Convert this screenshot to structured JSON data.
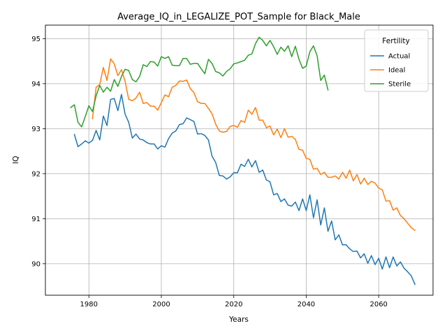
{
  "chart_data": {
    "type": "line",
    "title": "Average_IQ_in_LEGALIZE_POT_Sample for Black_Male",
    "xlabel": "Years",
    "ylabel": "IQ",
    "xlim": [
      1968,
      2075
    ],
    "ylim": [
      89.3,
      95.3
    ],
    "xticks": [
      1980,
      2000,
      2020,
      2040,
      2060
    ],
    "yticks": [
      90,
      91,
      92,
      93,
      94,
      95
    ],
    "grid": true,
    "legend": {
      "title": "Fertility",
      "position": "top-right"
    },
    "series": [
      {
        "name": "Actual",
        "color": "#1f77b4",
        "x": [
          1976,
          1977,
          1978,
          1979,
          1980,
          1981,
          1982,
          1983,
          1984,
          1985,
          1986,
          1987,
          1988,
          1989,
          1990,
          1991,
          1992,
          1993,
          1994,
          1995,
          1996,
          1997,
          1998,
          1999,
          2000,
          2001,
          2002,
          2003,
          2004,
          2005,
          2006,
          2007,
          2008,
          2009,
          2010,
          2011,
          2012,
          2013,
          2014,
          2015,
          2016,
          2017,
          2018,
          2019,
          2020,
          2021,
          2022,
          2023,
          2024,
          2025,
          2026,
          2027,
          2028,
          2029,
          2030,
          2031,
          2032,
          2033,
          2034,
          2035,
          2036,
          2037,
          2038,
          2039,
          2040,
          2041,
          2042,
          2043,
          2044,
          2045,
          2046,
          2047,
          2048,
          2049,
          2050,
          2051,
          2052,
          2053,
          2054,
          2055,
          2056,
          2057,
          2058,
          2059,
          2060,
          2061,
          2062,
          2063,
          2064,
          2065,
          2066,
          2067,
          2068,
          2069,
          2070
        ],
        "values": [
          92.87,
          92.6,
          92.66,
          92.73,
          92.68,
          92.74,
          92.96,
          92.75,
          93.28,
          93.07,
          93.65,
          93.67,
          93.4,
          93.76,
          93.32,
          93.14,
          92.79,
          92.88,
          92.77,
          92.75,
          92.69,
          92.66,
          92.66,
          92.55,
          92.62,
          92.59,
          92.78,
          92.9,
          92.95,
          93.09,
          93.11,
          93.24,
          93.2,
          93.16,
          92.88,
          92.89,
          92.85,
          92.75,
          92.39,
          92.25,
          91.96,
          91.95,
          91.88,
          91.93,
          92.02,
          92.02,
          92.21,
          92.16,
          92.32,
          92.15,
          92.29,
          92.03,
          92.08,
          91.86,
          91.82,
          91.53,
          91.56,
          91.38,
          91.44,
          91.3,
          91.28,
          91.37,
          91.18,
          91.44,
          91.18,
          91.53,
          91.02,
          91.42,
          90.86,
          91.24,
          90.72,
          90.95,
          90.53,
          90.64,
          90.42,
          90.42,
          90.33,
          90.27,
          90.28,
          90.13,
          90.22,
          90.01,
          90.18,
          89.98,
          90.12,
          89.88,
          90.15,
          89.91,
          90.15,
          89.95,
          90.04,
          89.9,
          89.82,
          89.73,
          89.54
        ]
      },
      {
        "name": "Ideal",
        "color": "#ff7f0e",
        "x": [
          1981,
          1982,
          1983,
          1984,
          1985,
          1986,
          1987,
          1988,
          1989,
          1990,
          1991,
          1992,
          1993,
          1994,
          1995,
          1996,
          1997,
          1998,
          1999,
          2000,
          2001,
          2002,
          2003,
          2004,
          2005,
          2006,
          2007,
          2008,
          2009,
          2010,
          2011,
          2012,
          2013,
          2014,
          2015,
          2016,
          2017,
          2018,
          2019,
          2020,
          2021,
          2022,
          2023,
          2024,
          2025,
          2026,
          2027,
          2028,
          2029,
          2030,
          2031,
          2032,
          2033,
          2034,
          2035,
          2036,
          2037,
          2038,
          2039,
          2040,
          2041,
          2042,
          2043,
          2044,
          2045,
          2046,
          2047,
          2048,
          2049,
          2050,
          2051,
          2052,
          2053,
          2054,
          2055,
          2056,
          2057,
          2058,
          2059,
          2060,
          2061,
          2062,
          2063,
          2064,
          2065,
          2066,
          2067,
          2068,
          2069,
          2070
        ],
        "values": [
          93.22,
          93.92,
          93.98,
          94.36,
          94.07,
          94.55,
          94.44,
          94.18,
          94.31,
          94.05,
          93.65,
          93.62,
          93.68,
          93.81,
          93.56,
          93.58,
          93.5,
          93.5,
          93.41,
          93.58,
          93.75,
          93.71,
          93.92,
          93.96,
          94.06,
          94.05,
          94.08,
          93.89,
          93.8,
          93.6,
          93.56,
          93.56,
          93.45,
          93.33,
          93.1,
          92.95,
          92.92,
          92.94,
          93.05,
          93.07,
          93.03,
          93.18,
          93.14,
          93.41,
          93.32,
          93.47,
          93.19,
          93.19,
          93.02,
          93.06,
          92.86,
          92.99,
          92.8,
          93.0,
          92.81,
          92.83,
          92.76,
          92.54,
          92.52,
          92.34,
          92.32,
          92.1,
          92.12,
          91.98,
          92.03,
          91.92,
          91.92,
          91.95,
          91.88,
          92.03,
          91.9,
          92.08,
          91.84,
          91.98,
          91.77,
          91.9,
          91.76,
          91.83,
          91.79,
          91.68,
          91.64,
          91.39,
          91.4,
          91.19,
          91.24,
          91.07,
          91.0,
          90.9,
          90.8,
          90.74
        ]
      },
      {
        "name": "Sterile",
        "color": "#2ca02c",
        "x": [
          1975,
          1976,
          1977,
          1978,
          1979,
          1980,
          1981,
          1982,
          1983,
          1984,
          1985,
          1986,
          1987,
          1988,
          1989,
          1990,
          1991,
          1992,
          1993,
          1994,
          1995,
          1996,
          1997,
          1998,
          1999,
          2000,
          2001,
          2002,
          2003,
          2004,
          2005,
          2006,
          2007,
          2008,
          2009,
          2010,
          2011,
          2012,
          2013,
          2014,
          2015,
          2016,
          2017,
          2018,
          2019,
          2020,
          2021,
          2022,
          2023,
          2024,
          2025,
          2026,
          2027,
          2028,
          2029,
          2030,
          2031,
          2032,
          2033,
          2034,
          2035,
          2036,
          2037,
          2038,
          2039,
          2040,
          2041,
          2042,
          2043,
          2044,
          2045,
          2046
        ],
        "values": [
          93.47,
          93.53,
          93.14,
          93.04,
          93.27,
          93.51,
          93.38,
          93.73,
          93.96,
          93.81,
          93.92,
          93.83,
          94.09,
          93.94,
          94.16,
          94.32,
          94.29,
          94.09,
          94.04,
          94.16,
          94.42,
          94.38,
          94.49,
          94.48,
          94.39,
          94.6,
          94.56,
          94.6,
          94.41,
          94.4,
          94.4,
          94.56,
          94.56,
          94.43,
          94.45,
          94.45,
          94.33,
          94.22,
          94.54,
          94.45,
          94.27,
          94.24,
          94.17,
          94.27,
          94.33,
          94.44,
          94.46,
          94.49,
          94.52,
          94.63,
          94.66,
          94.89,
          95.03,
          94.96,
          94.84,
          94.96,
          94.82,
          94.65,
          94.81,
          94.72,
          94.84,
          94.6,
          94.83,
          94.54,
          94.34,
          94.39,
          94.71,
          94.84,
          94.62,
          94.07,
          94.19,
          93.86
        ]
      }
    ]
  }
}
